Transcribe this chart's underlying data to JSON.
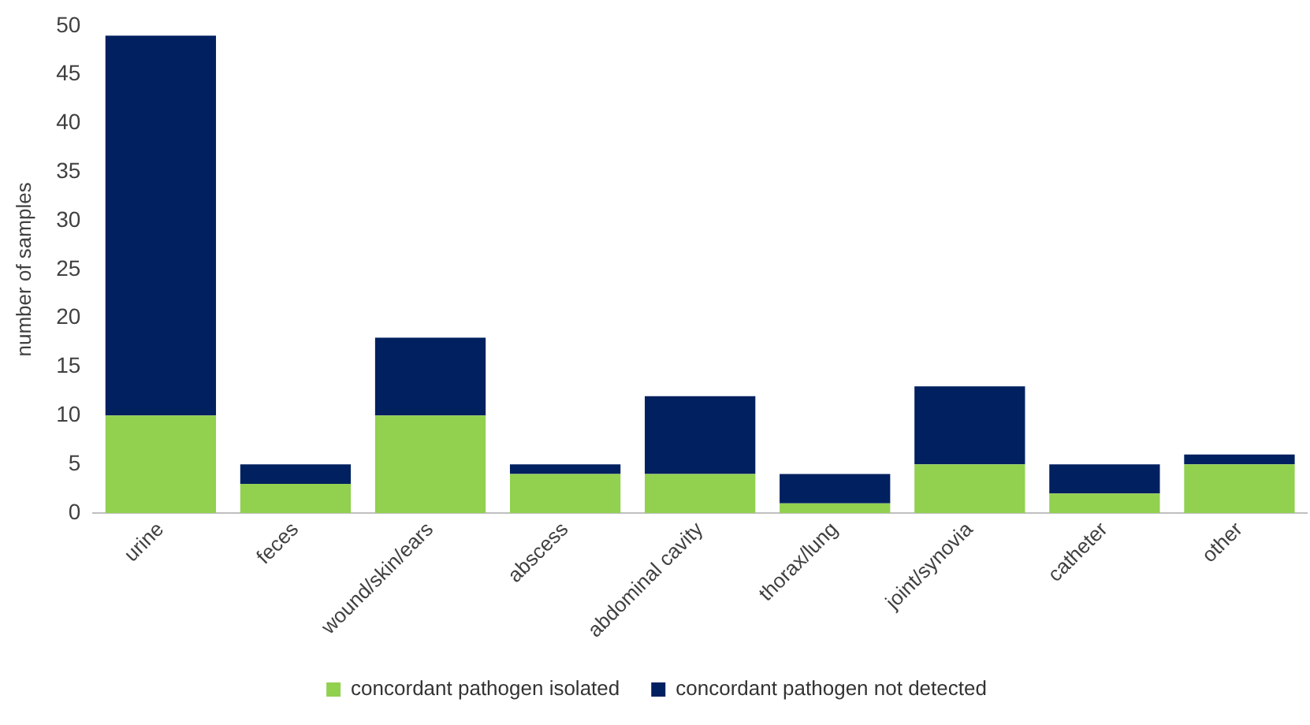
{
  "chart_data": {
    "type": "bar",
    "stacked": true,
    "ylabel": "number of samples",
    "categories": [
      "urine",
      "feces",
      "wound/skin/ears",
      "abscess",
      "abdominal cavity",
      "thorax/lung",
      "joint/synovia",
      "catheter",
      "other"
    ],
    "series": [
      {
        "name": "concordant pathogen isolated",
        "color": "#92d050",
        "values": [
          10,
          3,
          10,
          4,
          4,
          1,
          5,
          2,
          5
        ]
      },
      {
        "name": "concordant pathogen not detected",
        "color": "#002060",
        "values": [
          39,
          2,
          8,
          1,
          8,
          3,
          8,
          3,
          1
        ]
      }
    ],
    "ylim": [
      0,
      50
    ],
    "yticks": [
      0,
      5,
      10,
      15,
      20,
      25,
      30,
      35,
      40,
      45,
      50
    ],
    "grid": false,
    "legend": "bottom"
  }
}
